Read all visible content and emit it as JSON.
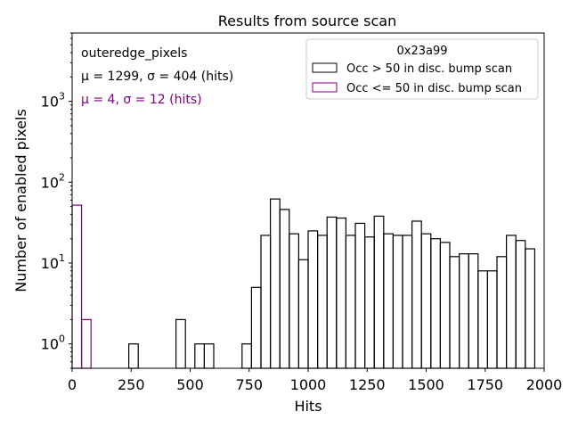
{
  "chart_data": {
    "type": "histogram",
    "title": "Results from source scan",
    "xlabel": "Hits",
    "ylabel": "Number of enabled pixels",
    "xlim": [
      0,
      2000
    ],
    "ylim_log": [
      0.5,
      7000
    ],
    "yscale": "log",
    "x_ticks": [
      0,
      250,
      500,
      750,
      1000,
      1250,
      1500,
      1750,
      2000
    ],
    "x_tick_labels": [
      "0",
      "250",
      "500",
      "750",
      "1000",
      "1250",
      "1500",
      "1750",
      "2000"
    ],
    "y_major_exponents": [
      0,
      1,
      2,
      3
    ],
    "legend": {
      "title": "0x23a99",
      "placement": "top-right",
      "entries": [
        "Occ > 50 in disc. bump scan",
        "Occ <= 50 in disc. bump scan"
      ]
    },
    "annotations": [
      {
        "text": "outeredge_pixels",
        "color": "#000000"
      },
      {
        "text": "μ = 1299, σ = 404 (hits)",
        "color": "#000000"
      },
      {
        "text": "μ = 4, σ = 12 (hits)",
        "color": "#800080"
      }
    ],
    "bin_width": 40,
    "series": [
      {
        "name": "Occ > 50 in disc. bump scan",
        "color": "#000000",
        "bins": [
          [
            240,
            1
          ],
          [
            440,
            2
          ],
          [
            520,
            1
          ],
          [
            560,
            1
          ],
          [
            720,
            1
          ],
          [
            760,
            5
          ],
          [
            800,
            22
          ],
          [
            840,
            62
          ],
          [
            880,
            46
          ],
          [
            920,
            23
          ],
          [
            960,
            11
          ],
          [
            1000,
            25
          ],
          [
            1040,
            22
          ],
          [
            1080,
            37
          ],
          [
            1120,
            36
          ],
          [
            1160,
            22
          ],
          [
            1200,
            31
          ],
          [
            1240,
            21
          ],
          [
            1280,
            38
          ],
          [
            1320,
            23
          ],
          [
            1360,
            22
          ],
          [
            1400,
            22
          ],
          [
            1440,
            33
          ],
          [
            1480,
            23
          ],
          [
            1520,
            20
          ],
          [
            1560,
            18
          ],
          [
            1600,
            12
          ],
          [
            1640,
            13
          ],
          [
            1680,
            13
          ],
          [
            1720,
            8
          ],
          [
            1760,
            8
          ],
          [
            1800,
            12
          ],
          [
            1840,
            22
          ],
          [
            1880,
            19
          ],
          [
            1920,
            15
          ]
        ]
      },
      {
        "name": "Occ <= 50 in disc. bump scan",
        "color": "#800080",
        "bins": [
          [
            0,
            52
          ],
          [
            40,
            2
          ]
        ]
      }
    ]
  }
}
